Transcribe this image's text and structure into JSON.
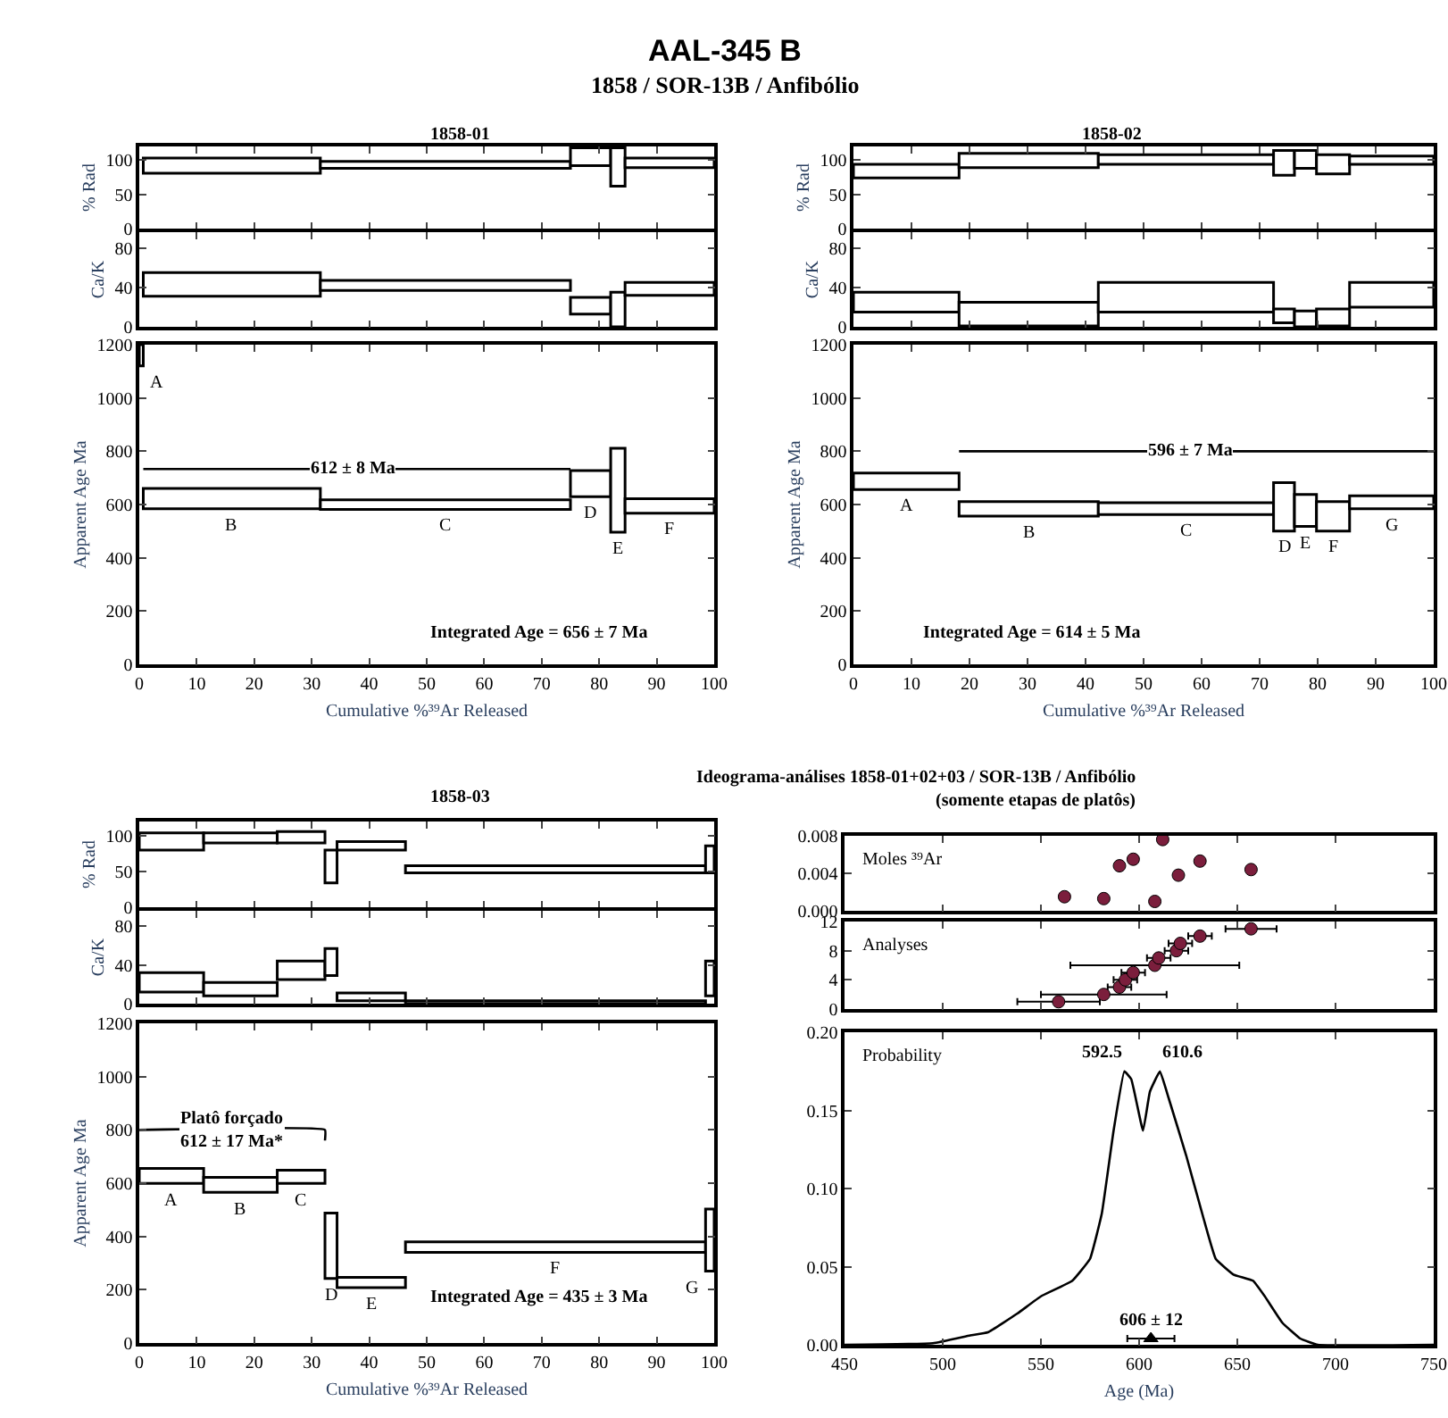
{
  "chart_data": [
    {
      "type": "other",
      "title": "AAL-345 B",
      "subtitle": "1858 / SOR-13B / Anfibólio"
    },
    {
      "type": "histogram",
      "title": "1858-01",
      "ylabel": "% Rad",
      "color": "#000000",
      "bins": [
        0.7,
        31.5,
        75,
        82,
        84.5,
        100
      ],
      "base": [
        81,
        88,
        92,
        62,
        89
      ],
      "values": [
        22,
        10,
        26,
        56,
        14
      ],
      "xlim": [
        0,
        100
      ],
      "xticks": [
        0,
        10,
        20,
        30,
        40,
        50,
        60,
        70,
        80,
        90,
        100
      ],
      "ylim": [
        0,
        120
      ],
      "yticks": [
        0,
        50,
        100
      ],
      "tick_labels": "y"
    },
    {
      "type": "histogram",
      "ylabel": "Ca/K",
      "color": "#000000",
      "bins": [
        0.7,
        31.5,
        75,
        82,
        84.5,
        100
      ],
      "base": [
        31,
        37,
        13,
        0,
        32
      ],
      "values": [
        24,
        10,
        17,
        35,
        13
      ],
      "xlim": [
        0,
        100
      ],
      "xticks": [
        0,
        10,
        20,
        30,
        40,
        50,
        60,
        70,
        80,
        90,
        100
      ],
      "ylim": [
        0,
        96
      ],
      "yticks": [
        0,
        40,
        80
      ],
      "tick_labels": "y"
    },
    {
      "type": "histogram",
      "ylabel": "Apparent Age Ma",
      "xlabel": "Cumulative %³⁹Ar Released",
      "color": "#000000",
      "bins": [
        0,
        0.7,
        31.5,
        75,
        82,
        84.5,
        100
      ],
      "base": [
        1120,
        584,
        582,
        629,
        496,
        567
      ],
      "values": [
        80,
        76,
        36,
        98,
        315,
        55
      ],
      "value_labels": [
        "A",
        "B",
        "C",
        "D",
        "E",
        "F"
      ],
      "xlim": [
        0,
        100
      ],
      "xticks": [
        0,
        10,
        20,
        30,
        40,
        50,
        60,
        70,
        80,
        90,
        100
      ],
      "ylim": [
        0,
        1200
      ],
      "yticks": [
        0,
        200,
        400,
        600,
        800,
        1000,
        1200
      ],
      "series": [
        {
          "type": "line",
          "x": [
            0.7,
            75
          ],
          "values": [
            733,
            733
          ],
          "color": "#000000"
        }
      ],
      "annotations": [
        {
          "text": "612 ± 8 Ma",
          "x": 37,
          "y": 733
        },
        "Integrated Age = 656 ± 7 Ma"
      ]
    },
    {
      "type": "histogram",
      "title": "1858-02",
      "ylabel": "% Rad",
      "color": "#000000",
      "bins": [
        0,
        18.2,
        42.2,
        72.4,
        76,
        79.8,
        85.5,
        100
      ],
      "base": [
        74,
        89,
        94,
        78,
        88,
        80,
        94
      ],
      "values": [
        20,
        21,
        14,
        36,
        26,
        28,
        12
      ],
      "xlim": [
        0,
        100
      ],
      "xticks": [
        0,
        10,
        20,
        30,
        40,
        50,
        60,
        70,
        80,
        90,
        100
      ],
      "ylim": [
        0,
        120
      ],
      "yticks": [
        0,
        50,
        100
      ],
      "tick_labels": "y"
    },
    {
      "type": "histogram",
      "ylabel": "Ca/K",
      "color": "#000000",
      "bins": [
        0,
        18.2,
        42.2,
        72.4,
        76,
        79.8,
        85.5,
        100
      ],
      "base": [
        15,
        1,
        15,
        4,
        0,
        1,
        20
      ],
      "values": [
        20,
        24,
        30,
        14,
        16,
        17,
        25
      ],
      "xlim": [
        0,
        100
      ],
      "xticks": [
        0,
        10,
        20,
        30,
        40,
        50,
        60,
        70,
        80,
        90,
        100
      ],
      "ylim": [
        0,
        96
      ],
      "yticks": [
        0,
        40,
        80
      ],
      "tick_labels": "y"
    },
    {
      "type": "histogram",
      "ylabel": "Apparent Age Ma",
      "xlabel": "Cumulative %³⁹Ar Released",
      "color": "#000000",
      "bins": [
        0,
        18.2,
        42.2,
        72.4,
        76,
        79.8,
        85.5,
        100
      ],
      "base": [
        656,
        556,
        562,
        500,
        518,
        500,
        584
      ],
      "values": [
        62,
        55,
        45,
        182,
        120,
        111,
        49
      ],
      "value_labels": [
        "A",
        "B",
        "C",
        "D",
        "E",
        "F",
        "G"
      ],
      "xlim": [
        0,
        100
      ],
      "xticks": [
        0,
        10,
        20,
        30,
        40,
        50,
        60,
        70,
        80,
        90,
        100
      ],
      "ylim": [
        0,
        1200
      ],
      "yticks": [
        0,
        200,
        400,
        600,
        800,
        1000,
        1200
      ],
      "series": [
        {
          "type": "line",
          "x": [
            18.2,
            100
          ],
          "values": [
            800,
            800
          ],
          "color": "#000000"
        }
      ],
      "annotations": [
        {
          "text": "596 ± 7 Ma",
          "x": 58,
          "y": 800
        },
        "Integrated Age = 614 ± 5 Ma"
      ]
    },
    {
      "type": "histogram",
      "title": "1858-03",
      "ylabel": "% Rad",
      "color": "#000000",
      "bins": [
        0,
        11.2,
        24,
        32.3,
        34.4,
        46.3,
        98.5,
        100
      ],
      "base": [
        80,
        90,
        90,
        34,
        80,
        48,
        48
      ],
      "values": [
        24,
        14,
        16,
        46,
        12,
        10,
        38
      ],
      "xlim": [
        0,
        100
      ],
      "xticks": [
        0,
        10,
        20,
        30,
        40,
        50,
        60,
        70,
        80,
        90,
        100
      ],
      "ylim": [
        0,
        120
      ],
      "yticks": [
        0,
        50,
        100
      ],
      "tick_labels": "y"
    },
    {
      "type": "histogram",
      "ylabel": "Ca/K",
      "color": "#000000",
      "bins": [
        0,
        11.2,
        24,
        32.3,
        34.4,
        46.3,
        98.5,
        100
      ],
      "base": [
        12,
        8,
        25,
        29,
        3,
        0,
        8
      ],
      "values": [
        20,
        14,
        19,
        28,
        8,
        3,
        36
      ],
      "xlim": [
        0,
        100
      ],
      "xticks": [
        0,
        10,
        20,
        30,
        40,
        50,
        60,
        70,
        80,
        90,
        100
      ],
      "ylim": [
        0,
        96
      ],
      "yticks": [
        0,
        40,
        80
      ],
      "tick_labels": "y"
    },
    {
      "type": "histogram",
      "ylabel": "Apparent Age Ma",
      "xlabel": "Cumulative %³⁹Ar Released",
      "color": "#000000",
      "bins": [
        0,
        11.2,
        24,
        32.3,
        34.4,
        46.3,
        98.5,
        100
      ],
      "base": [
        599,
        566,
        599,
        242,
        208,
        340,
        270
      ],
      "values": [
        56,
        56,
        50,
        246,
        38,
        40,
        233
      ],
      "value_labels": [
        "A",
        "B",
        "C",
        "D",
        "E",
        "F",
        "G"
      ],
      "xlim": [
        0,
        100
      ],
      "xticks": [
        0,
        10,
        20,
        30,
        40,
        50,
        60,
        70,
        80,
        90,
        100
      ],
      "ylim": [
        0,
        1200
      ],
      "yticks": [
        0,
        200,
        400,
        600,
        800,
        1000,
        1200
      ],
      "series": [
        {
          "type": "line",
          "x": [
            0,
            32.3,
            32.3
          ],
          "values": [
            800,
            800,
            760
          ],
          "color": "#000000"
        }
      ],
      "annotations": [
        {
          "text": "Platô forçado\n612 ± 17 Ma*",
          "x": 16.3,
          "y": 800
        },
        "Integrated Age = 435 ± 3 Ma"
      ]
    },
    {
      "type": "scatter",
      "title": "Ideograma-análises 1858-01+02+03 / SOR-13B / Anfibólio",
      "subtitle": "(somente etapas de platôs)",
      "marker": "circle",
      "color": "#7b1e3c",
      "x": [
        562,
        582,
        590,
        597,
        608,
        612,
        620,
        631,
        657
      ],
      "values": [
        0.0015,
        0.0013,
        0.0048,
        0.0055,
        0.001,
        0.0076,
        0.0038,
        0.0053,
        0.0044
      ],
      "xlim": [
        450,
        750
      ],
      "xticks": [
        450,
        500,
        550,
        600,
        650,
        700,
        750
      ],
      "ylim": [
        0,
        0.008
      ],
      "yticks": [
        {
          "value": 0,
          "label": "0.000"
        },
        {
          "value": 0.004,
          "label": "0.004"
        },
        {
          "value": 0.008,
          "label": "0.008"
        }
      ],
      "tick_labels": "y",
      "annotations": [
        "Moles ³⁹Ar"
      ]
    },
    {
      "type": "scatter",
      "marker": "circle",
      "color": "#7b1e3c",
      "x": [
        559,
        582,
        590,
        593,
        597,
        608,
        610,
        619,
        621,
        631,
        657
      ],
      "values": [
        1,
        2,
        3,
        4,
        5,
        6,
        7,
        8,
        9,
        10,
        11
      ],
      "xerrors": [
        21,
        32,
        6,
        6,
        6,
        43,
        6,
        6,
        6,
        6,
        13
      ],
      "xlim": [
        450,
        750
      ],
      "xticks": [
        450,
        500,
        550,
        600,
        650,
        700,
        750
      ],
      "ylim": [
        0,
        12
      ],
      "yticks": [
        0,
        4,
        8,
        12
      ],
      "tick_labels": "y",
      "annotations": [
        "Analyses"
      ]
    },
    {
      "type": "line",
      "xlabel": "Age (Ma)",
      "xlim": [
        450,
        750
      ],
      "xticks": [
        450,
        500,
        550,
        600,
        650,
        700,
        750
      ],
      "ylim": [
        0,
        0.2
      ],
      "yticks": [
        {
          "value": 0,
          "label": "0.00"
        },
        {
          "value": 0.05,
          "label": "0.05"
        },
        {
          "value": 0.1,
          "label": "0.10"
        },
        {
          "value": 0.15,
          "label": "0.15"
        },
        {
          "value": 0.2,
          "label": "0.20"
        }
      ],
      "series": [
        {
          "type": "line",
          "color": "#000000",
          "x": [
            450,
            495,
            514,
            523,
            538,
            550,
            566,
            575,
            581,
            587,
            592.5,
            596,
            602,
            605.5,
            610.6,
            615,
            624,
            633,
            639,
            648,
            658,
            664,
            673,
            682,
            691,
            750
          ],
          "values": [
            0,
            0.001,
            0.006,
            0.008,
            0.02,
            0.031,
            0.041,
            0.055,
            0.084,
            0.137,
            0.175,
            0.17,
            0.137,
            0.162,
            0.175,
            0.158,
            0.121,
            0.08,
            0.055,
            0.045,
            0.041,
            0.031,
            0.014,
            0.004,
            0,
            0
          ]
        },
        {
          "type": "scatter",
          "marker": "triangle",
          "color": "#000000",
          "x": [
            606
          ],
          "values": [
            0.004
          ],
          "xerrors": [
            12
          ]
        }
      ],
      "annotations": [
        "Probability",
        {
          "text": "592.5",
          "x": 592.5,
          "y": 0.175
        },
        {
          "text": "610.6",
          "x": 610.6,
          "y": 0.175
        },
        {
          "text": "606 ± 12",
          "x": 606,
          "y": 0.016
        }
      ]
    }
  ]
}
